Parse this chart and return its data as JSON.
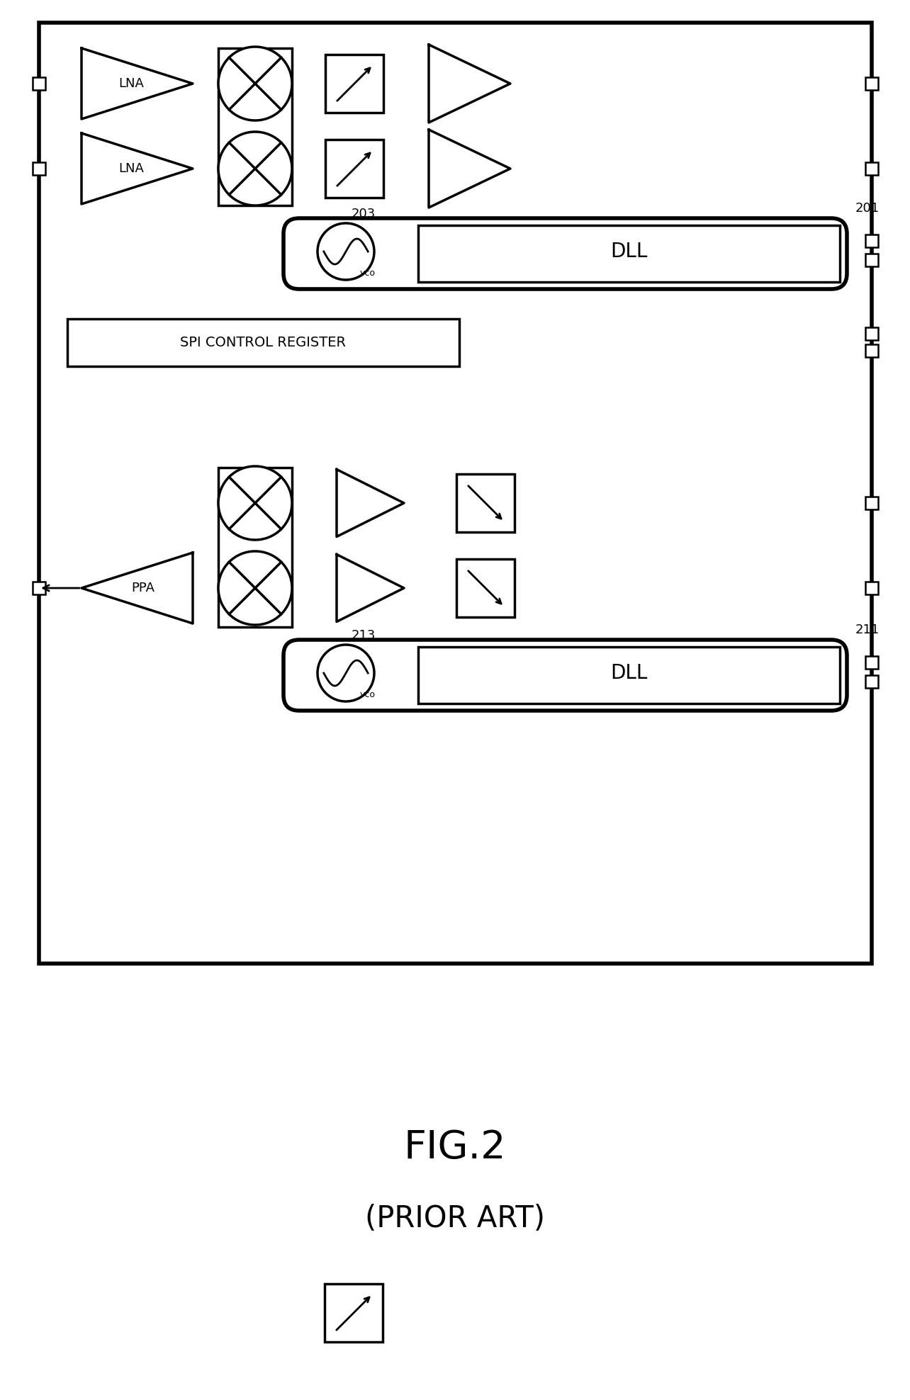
{
  "fig_width": 12.84,
  "fig_height": 19.76,
  "dpi": 100,
  "bg_color": "#ffffff",
  "title": "FIG.2",
  "subtitle": "(PRIOR ART)",
  "title_fontsize": 40,
  "subtitle_fontsize": 30,
  "label_203": "203",
  "label_201": "201",
  "label_213": "213",
  "label_211": "211",
  "label_lna1": "LNA",
  "label_lna2": "LNA",
  "label_ppa": "PPA",
  "label_dll1": "DLL",
  "label_dll2": "DLL",
  "label_spi": "SPI CONTROL REGISTER",
  "label_vco1": "vco",
  "label_vco2": "vco"
}
